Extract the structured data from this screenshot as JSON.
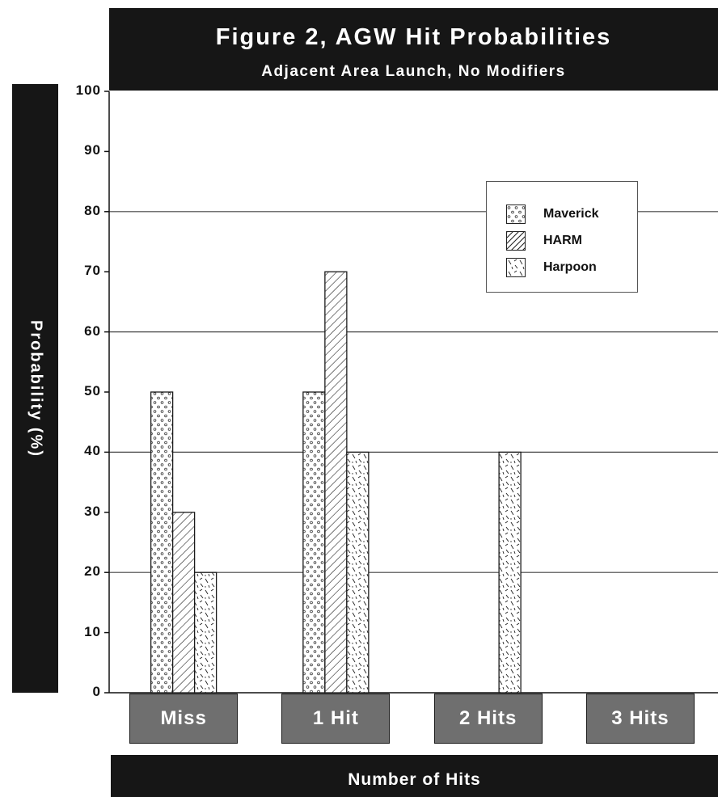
{
  "chart_data": {
    "type": "bar",
    "title": "Figure 2, AGW Hit Probabilities",
    "subtitle": "Adjacent Area Launch, No Modifiers",
    "xlabel": "Number of Hits",
    "ylabel": "Probability (%)",
    "ylim": [
      0,
      100
    ],
    "yticks": [
      "0",
      "10",
      "20",
      "30",
      "40",
      "50",
      "60",
      "70",
      "80",
      "90",
      "100"
    ],
    "grid": true,
    "legend_position": "top-right",
    "categories": [
      "Miss",
      "1 Hit",
      "2 Hits",
      "3 Hits"
    ],
    "series": [
      {
        "name": "Maverick",
        "pattern": "dots",
        "values": [
          50,
          50,
          0,
          0
        ]
      },
      {
        "name": "HARM",
        "pattern": "hatch",
        "values": [
          30,
          70,
          0,
          0
        ]
      },
      {
        "name": "Harpoon",
        "pattern": "dashes",
        "values": [
          20,
          40,
          40,
          0
        ]
      }
    ]
  },
  "colors": {
    "header_background": "#161616",
    "header_text": "#ffffff",
    "category_box": "#6f6f6f",
    "bar_fill": "#ffffff",
    "bar_outline": "#1a1a1a"
  }
}
